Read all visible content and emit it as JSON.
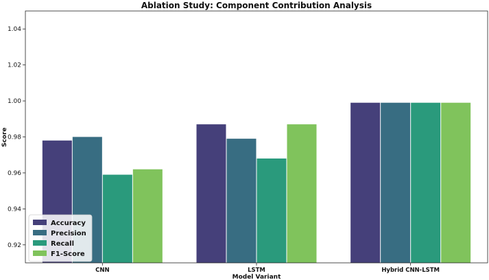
{
  "chart_data": {
    "type": "bar",
    "title": "Ablation Study: Component Contribution Analysis",
    "xlabel": "Model Variant",
    "ylabel": "Score",
    "categories": [
      "CNN",
      "LSTM",
      "Hybrid CNN-LSTM"
    ],
    "series": [
      {
        "name": "Accuracy",
        "color": "#45407a",
        "values": [
          0.978,
          0.987,
          0.999
        ]
      },
      {
        "name": "Precision",
        "color": "#386d82",
        "values": [
          0.98,
          0.979,
          0.999
        ]
      },
      {
        "name": "Recall",
        "color": "#2a9a7c",
        "values": [
          0.959,
          0.968,
          0.999
        ]
      },
      {
        "name": "F1-Score",
        "color": "#80c35c",
        "values": [
          0.962,
          0.987,
          0.999
        ]
      }
    ],
    "ylim": [
      0.91,
      1.05
    ],
    "yticks": [
      "0.92",
      "0.94",
      "0.96",
      "0.98",
      "1.00",
      "1.02",
      "1.04"
    ],
    "grid": false,
    "legend_position": "bottom-left"
  }
}
